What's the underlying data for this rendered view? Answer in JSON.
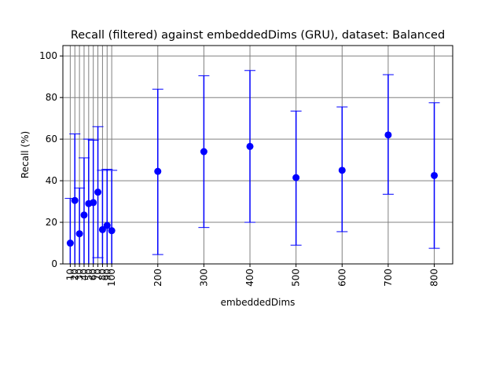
{
  "chart_data": {
    "type": "scatter",
    "title": "Recall (filtered) against embeddedDims (GRU), dataset: Balanced",
    "xlabel": "embeddedDims",
    "ylabel": "Recall (%)",
    "xlim": [
      -6,
      840
    ],
    "ylim": [
      0,
      105
    ],
    "grid": "x-and-y",
    "x_ticks": [
      10,
      20,
      30,
      40,
      50,
      60,
      70,
      80,
      90,
      100,
      200,
      300,
      400,
      500,
      600,
      700,
      800
    ],
    "x_tick_labels": [
      "10",
      "20",
      "30",
      "40",
      "50",
      "60",
      "70",
      "80",
      "90",
      "100",
      "200",
      "300",
      "400",
      "500",
      "600",
      "700",
      "800"
    ],
    "y_ticks": [
      0,
      20,
      40,
      60,
      80,
      100
    ],
    "y_tick_labels": [
      "0",
      "20",
      "40",
      "60",
      "80",
      "100"
    ],
    "marker_color": "#0000ff",
    "points": [
      {
        "x": 10,
        "y": 10.0,
        "err_low": 0.0,
        "err_high": 31.5
      },
      {
        "x": 20,
        "y": 30.5,
        "err_low": 0.0,
        "err_high": 62.5
      },
      {
        "x": 30,
        "y": 14.5,
        "err_low": 0.0,
        "err_high": 36.5
      },
      {
        "x": 40,
        "y": 23.5,
        "err_low": 0.0,
        "err_high": 51.0
      },
      {
        "x": 50,
        "y": 29.0,
        "err_low": 0.0,
        "err_high": 60.0
      },
      {
        "x": 60,
        "y": 29.5,
        "err_low": 0.0,
        "err_high": 59.5
      },
      {
        "x": 70,
        "y": 34.5,
        "err_low": 3.0,
        "err_high": 66.0
      },
      {
        "x": 80,
        "y": 16.5,
        "err_low": 0.0,
        "err_high": 45.0
      },
      {
        "x": 90,
        "y": 18.5,
        "err_low": 0.0,
        "err_high": 45.5
      },
      {
        "x": 100,
        "y": 16.0,
        "err_low": 0.0,
        "err_high": 45.0
      },
      {
        "x": 200,
        "y": 44.5,
        "err_low": 4.5,
        "err_high": 84.0
      },
      {
        "x": 300,
        "y": 54.0,
        "err_low": 17.5,
        "err_high": 90.5
      },
      {
        "x": 400,
        "y": 56.5,
        "err_low": 20.0,
        "err_high": 93.0
      },
      {
        "x": 500,
        "y": 41.5,
        "err_low": 9.0,
        "err_high": 73.5
      },
      {
        "x": 600,
        "y": 45.0,
        "err_low": 15.5,
        "err_high": 75.5
      },
      {
        "x": 700,
        "y": 62.0,
        "err_low": 33.5,
        "err_high": 91.0
      },
      {
        "x": 800,
        "y": 42.5,
        "err_low": 7.5,
        "err_high": 77.5
      }
    ]
  }
}
